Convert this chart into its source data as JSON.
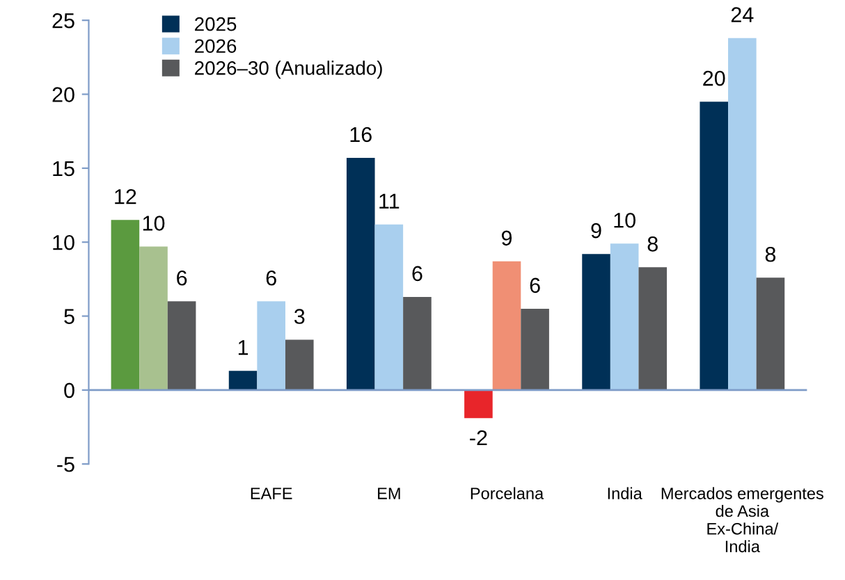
{
  "chart_data": {
    "type": "bar",
    "categories": [
      null,
      "EAFE",
      "EM",
      "Porcelana",
      "India",
      "Mercados emergentes\nde Asia\nEx-China/\nIndia"
    ],
    "series": [
      {
        "name": "2025",
        "color": "#003057",
        "colors": [
          "#5b9a3f",
          "#003057",
          "#003057",
          "#e8252a",
          "#003057",
          "#003057"
        ],
        "values": [
          11.5,
          1.3,
          15.7,
          -1.9,
          9.2,
          19.5
        ],
        "value_labels": [
          "12",
          "1",
          "16",
          "-2",
          "9",
          "20"
        ]
      },
      {
        "name": "2026",
        "color": "#a9cfee",
        "colors": [
          "#a8c18f",
          "#a9cfee",
          "#a9cfee",
          "#f08f74",
          "#a9cfee",
          "#a9cfee"
        ],
        "values": [
          9.7,
          6.0,
          11.2,
          8.7,
          9.9,
          23.8
        ],
        "value_labels": [
          "10",
          "6",
          "11",
          "9",
          "10",
          "24"
        ]
      },
      {
        "name": "2026–30 (Anualizado)",
        "color": "#58595b",
        "colors": [
          "#58595b",
          "#58595b",
          "#58595b",
          "#58595b",
          "#58595b",
          "#58595b"
        ],
        "values": [
          6.0,
          3.4,
          6.3,
          5.5,
          8.3,
          7.6
        ],
        "value_labels": [
          "6",
          "3",
          "6",
          "6",
          "8",
          "8"
        ]
      }
    ],
    "ylim": [
      -5,
      25
    ],
    "yticks": [
      -5,
      0,
      5,
      10,
      15,
      20,
      25
    ],
    "ref_lines": [
      {
        "axis": "y",
        "value": 0,
        "color": "#7f9cc8"
      }
    ],
    "grid": false,
    "legend": "top left"
  }
}
